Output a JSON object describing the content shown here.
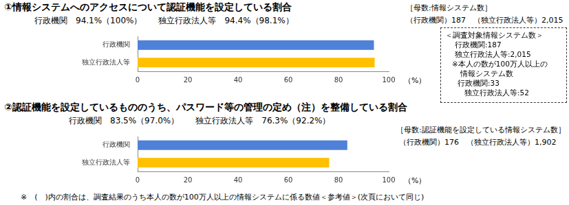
{
  "chart_data": [
    {
      "type": "bar",
      "orientation": "horizontal",
      "title": "①情報システムへのアクセスについて認証機能を設定している割合",
      "subtitle": "行政機関　94.1%（100%）　　独立行政法人等　94.4%（98.1%）",
      "categories": [
        "行政機関",
        "独立行政法人等"
      ],
      "values": [
        94.1,
        94.4
      ],
      "colors": [
        "#4f81d9",
        "#ffc000"
      ],
      "xlim": [
        0,
        100
      ],
      "xticks": [
        0,
        20,
        40,
        60,
        80,
        100
      ],
      "xlabel": "（%）",
      "grid": false,
      "annotations": [
        "［母数:情報システム数］",
        "（行政機関）187　（独立行政法人等）2,015"
      ]
    },
    {
      "type": "bar",
      "orientation": "horizontal",
      "title": "②認証機能を設定しているもののうち、パスワード等の管理の定め（注）を整備している割合",
      "subtitle": "行政機関　83.5%（97.0%）　　独立行政法人等　76.3%（92.2%）",
      "categories": [
        "行政機関",
        "独立行政法人等"
      ],
      "values": [
        83.5,
        76.3
      ],
      "colors": [
        "#4f81d9",
        "#ffc000"
      ],
      "xlim": [
        0,
        100
      ],
      "xticks": [
        0,
        20,
        40,
        60,
        80,
        100
      ],
      "xlabel": "（%）",
      "grid": false,
      "annotations": [
        "［母数:認証機能を設定している情報システム数］",
        "（行政機関）176　（独立行政法人等）1,902"
      ]
    }
  ],
  "note_box": [
    "＜調査対象情報システム数＞",
    "行政機関:187",
    "独立行政法人等:2,015",
    "※本人の数が100万人以上の",
    "情報システム数",
    "行政機関:33",
    "独立行政法人等:52"
  ],
  "footnote": "※　(　)内の割合は、調査結果のうち本人の数が100万人以上の情報システムに係る数値＜参考値＞(次頁において同じ)"
}
